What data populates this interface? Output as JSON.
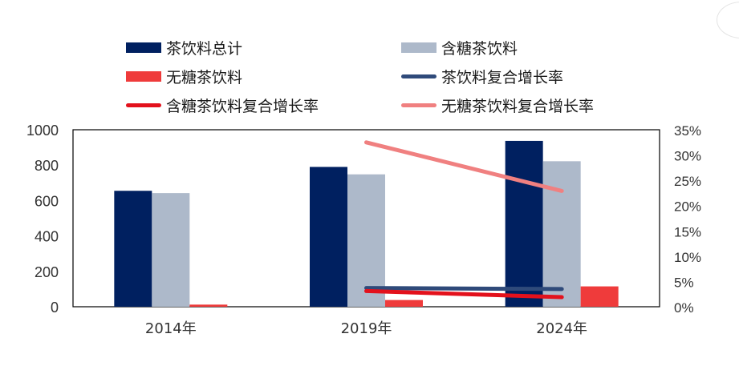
{
  "chart_data": {
    "type": "bar",
    "categories": [
      "2014年",
      "2019年",
      "2024年"
    ],
    "series": [
      {
        "name": "茶饮料总计",
        "kind": "bar",
        "axis": "left",
        "color": "#002060",
        "values": [
          655,
          790,
          937
        ]
      },
      {
        "name": "含糖茶饮料",
        "kind": "bar",
        "axis": "left",
        "color": "#adb9ca",
        "values": [
          642,
          748,
          822
        ]
      },
      {
        "name": "无糖茶饮料",
        "kind": "bar",
        "axis": "left",
        "color": "#ef3b3b",
        "values": [
          12,
          38,
          115
        ]
      },
      {
        "name": "茶饮料复合增长率",
        "kind": "line",
        "axis": "right",
        "color": "#2f4a7a",
        "points": [
          {
            "x": "2019年",
            "y": 0.037
          },
          {
            "x": "2024年",
            "y": 0.035
          }
        ]
      },
      {
        "name": "含糖茶饮料复合增长率",
        "kind": "line",
        "axis": "right",
        "color": "#e3111c",
        "points": [
          {
            "x": "2019年",
            "y": 0.031
          },
          {
            "x": "2024年",
            "y": 0.019
          }
        ]
      },
      {
        "name": "无糖茶饮料复合增长率",
        "kind": "line",
        "axis": "right",
        "color": "#f08080",
        "points": [
          {
            "x": "2019年",
            "y": 0.325
          },
          {
            "x": "2024年",
            "y": 0.229
          }
        ]
      }
    ],
    "y_left": {
      "ylim": [
        0,
        1000
      ],
      "ticks": [
        "0",
        "200",
        "400",
        "600",
        "800",
        "1000"
      ]
    },
    "y_right": {
      "ylim": [
        0,
        0.35
      ],
      "ticks": [
        "0%",
        "5%",
        "10%",
        "15%",
        "20%",
        "25%",
        "30%",
        "35%"
      ]
    },
    "grid": false,
    "legend_position": "top"
  }
}
